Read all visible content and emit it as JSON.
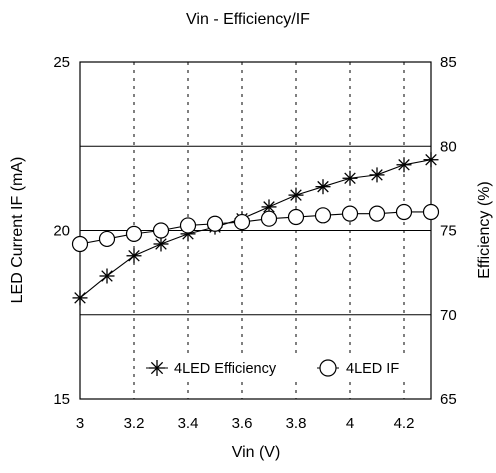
{
  "chart_data": {
    "type": "line",
    "title": "Vin - Efficiency/IF",
    "xlabel": "Vin (V)",
    "ylabel_left": "LED Current IF (mA)",
    "ylabel_right": "Efficiency (%)",
    "xlim": [
      3.0,
      4.3
    ],
    "ylim_left": [
      15,
      25
    ],
    "ylim_right": [
      65,
      85
    ],
    "x_ticks": [
      3,
      3.2,
      3.4,
      3.6,
      3.8,
      4,
      4.2
    ],
    "x_tick_labels": [
      "3",
      "3.2",
      "3.4",
      "3.6",
      "3.8",
      "4",
      "4.2"
    ],
    "y_left_ticks": [
      15,
      20,
      25
    ],
    "y_left_tick_labels": [
      "15",
      "20",
      "25"
    ],
    "y_right_ticks": [
      65,
      70,
      75,
      80,
      85
    ],
    "y_right_tick_labels": [
      "65",
      "70",
      "75",
      "80",
      "85"
    ],
    "vertical_grid": "dotted",
    "horizontal_grid": "solid",
    "legend_position": "bottom-right",
    "series": [
      {
        "name": "4LED Efficiency",
        "axis": "right",
        "marker": "asterisk",
        "color": "#000000",
        "x": [
          3.0,
          3.1,
          3.2,
          3.3,
          3.4,
          3.5,
          3.6,
          3.7,
          3.8,
          3.9,
          4.0,
          4.1,
          4.2,
          4.3
        ],
        "y": [
          71.0,
          72.3,
          73.5,
          74.2,
          74.8,
          75.2,
          75.7,
          76.4,
          77.1,
          77.6,
          78.1,
          78.3,
          78.9,
          79.2
        ]
      },
      {
        "name": "4LED IF",
        "axis": "left",
        "marker": "circle",
        "color": "#000000",
        "x": [
          3.0,
          3.1,
          3.2,
          3.3,
          3.4,
          3.5,
          3.6,
          3.7,
          3.8,
          3.9,
          4.0,
          4.1,
          4.2,
          4.3
        ],
        "y": [
          19.6,
          19.75,
          19.9,
          20.0,
          20.15,
          20.2,
          20.25,
          20.35,
          20.4,
          20.45,
          20.5,
          20.5,
          20.55,
          20.55
        ]
      }
    ]
  }
}
